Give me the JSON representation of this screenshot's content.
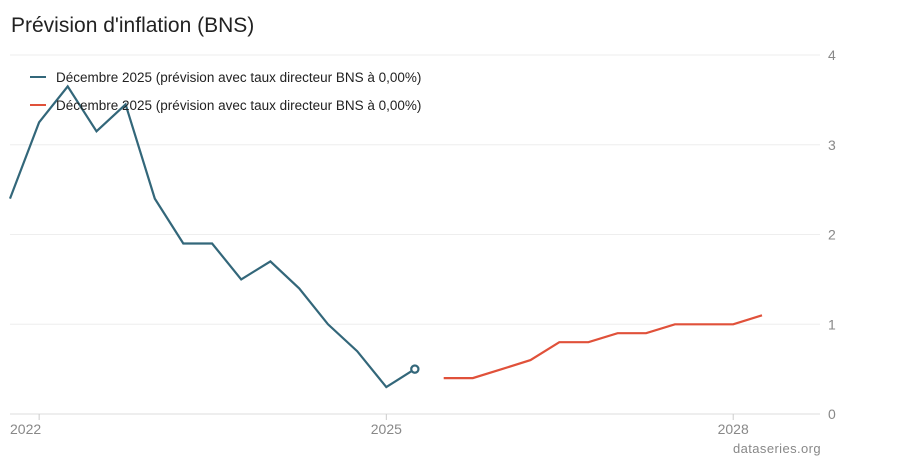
{
  "chart_data": {
    "type": "line",
    "title": "Prévision d'inflation (BNS)",
    "xlabel": "",
    "ylabel": "",
    "xlim": [
      "2021-10-01",
      "2028-10-01"
    ],
    "ylim": [
      0,
      4
    ],
    "x_ticks": [
      "2022",
      "2025",
      "2028"
    ],
    "y_ticks": [
      "0",
      "1",
      "2",
      "3",
      "4"
    ],
    "grid": true,
    "legend_position": "top-left",
    "series": [
      {
        "name": "Décembre 2025 (prévision avec taux directeur BNS à 0,00%)",
        "color": "#33677A",
        "x": [
          "2021-10-01",
          "2022-01-01",
          "2022-04-01",
          "2022-07-01",
          "2022-10-01",
          "2023-01-01",
          "2023-04-01",
          "2023-07-01",
          "2023-10-01",
          "2024-01-01",
          "2024-04-01",
          "2024-07-01",
          "2024-10-01",
          "2025-01-01",
          "2025-04-01"
        ],
        "y": [
          2.4,
          3.25,
          3.65,
          3.15,
          3.45,
          2.4,
          1.9,
          1.9,
          1.5,
          1.7,
          1.4,
          1.0,
          0.7,
          0.3,
          0.5
        ],
        "end_marker": true
      },
      {
        "name": "Décembre 2025 (prévision avec taux directeur BNS à 0,00%)",
        "color": "#E0513A",
        "x": [
          "2025-07-01",
          "2025-10-01",
          "2026-01-01",
          "2026-04-01",
          "2026-07-01",
          "2026-10-01",
          "2027-01-01",
          "2027-04-01",
          "2027-07-01",
          "2027-10-01",
          "2028-01-01",
          "2028-04-01"
        ],
        "y": [
          0.4,
          0.4,
          0.5,
          0.6,
          0.8,
          0.8,
          0.9,
          0.9,
          1.0,
          1.0,
          1.0,
          1.1
        ],
        "end_marker": false
      }
    ]
  },
  "source": "dataseries.org"
}
